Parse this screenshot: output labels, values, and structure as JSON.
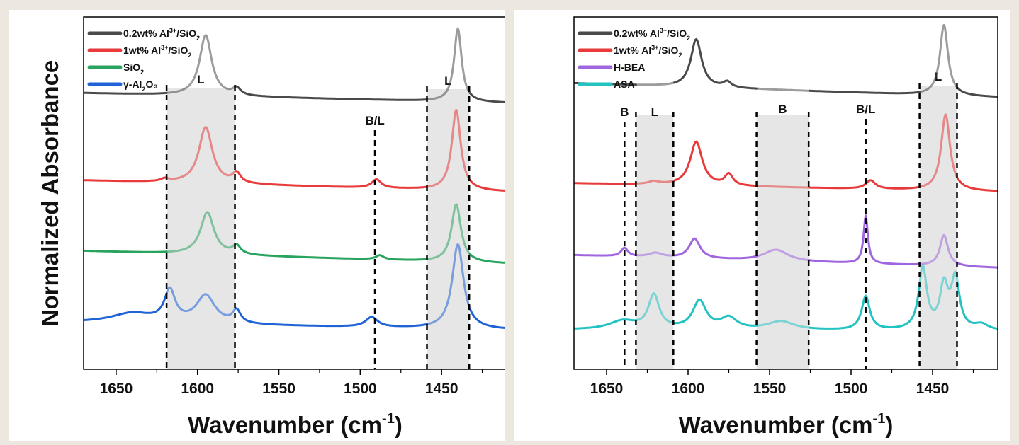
{
  "ylabel": "Normalized Absorbance",
  "chart_data": [
    {
      "type": "line",
      "xlabel": "Wavenumber (cm",
      "xlabel_sup": "-1",
      "xlim": [
        1670,
        1410
      ],
      "x_reversed": true,
      "xticks": [
        1650,
        1600,
        1550,
        1500,
        1450
      ],
      "tick_labels": [
        "1650",
        "1600",
        "1550",
        "1500",
        "1450"
      ],
      "legend": {
        "placement": "top-left",
        "entries": [
          {
            "text": "0.2wt% Al",
            "sup": "3+",
            "tail": "/SiO",
            "sub": "2",
            "tail2": ""
          },
          {
            "text": "1wt% Al",
            "sup": "3+",
            "tail": "/SiO",
            "sub": "2",
            "tail2": ""
          },
          {
            "text": "SiO",
            "sup": "",
            "tail": "",
            "sub": "2",
            "tail2": ""
          },
          {
            "text": "γ-Al",
            "sup": "",
            "tail": "",
            "sub": "2",
            "tail2": "O₃"
          }
        ]
      },
      "bands": [
        {
          "from": 1619,
          "to": 1577,
          "label": "L"
        },
        {
          "from": 1459,
          "to": 1433,
          "label": "L"
        }
      ],
      "dashed_lines": [
        {
          "x": 1619,
          "label": ""
        },
        {
          "x": 1577,
          "label": ""
        },
        {
          "x": 1491,
          "label": "B/L"
        },
        {
          "x": 1459,
          "label": ""
        },
        {
          "x": 1433,
          "label": ""
        }
      ],
      "series": [
        {
          "color": "#4a4a4a",
          "baseline": [
            0.27,
            0.305
          ],
          "peaks": [
            [
              1595,
              0.215,
              4.5
            ],
            [
              1576,
              0.025,
              3
            ],
            [
              1440,
              0.26,
              2.8
            ]
          ]
        },
        {
          "color": "#e83a3a",
          "baseline": [
            0.58,
            0.62
          ],
          "peaks": [
            [
              1595,
              0.2,
              5
            ],
            [
              1576,
              0.035,
              3
            ],
            [
              1620,
              0.01,
              3
            ],
            [
              1490,
              0.03,
              3.5
            ],
            [
              1441,
              0.285,
              3.3
            ]
          ]
        },
        {
          "color": "#2aa35f",
          "baseline": [
            0.83,
            0.875
          ],
          "peaks": [
            [
              1594,
              0.15,
              5
            ],
            [
              1576,
              0.03,
              3
            ],
            [
              1488,
              0.015,
              3
            ],
            [
              1441,
              0.205,
              3.5
            ]
          ]
        },
        {
          "color": "#1f63d6",
          "baseline": [
            1.085,
            1.11
          ],
          "peaks": [
            [
              1640,
              0.035,
              16
            ],
            [
              1617,
              0.11,
              4
            ],
            [
              1595,
              0.1,
              7
            ],
            [
              1576,
              0.045,
              3
            ],
            [
              1493,
              0.035,
              4.5
            ],
            [
              1440,
              0.3,
              4.2
            ]
          ]
        }
      ]
    },
    {
      "type": "line",
      "xlabel": "Wavenumber (cm",
      "xlabel_sup": "-1",
      "xlim": [
        1670,
        1410
      ],
      "x_reversed": true,
      "xticks": [
        1650,
        1600,
        1550,
        1500,
        1450
      ],
      "tick_labels": [
        "1650",
        "1600",
        "1550",
        "1500",
        "1450"
      ],
      "legend": {
        "placement": "top-left",
        "entries": [
          {
            "text": "0.2wt% Al",
            "sup": "3+",
            "tail": "/SiO",
            "sub": "2",
            "tail2": ""
          },
          {
            "text": "1wt% Al",
            "sup": "3+",
            "tail": "/SiO",
            "sub": "2",
            "tail2": ""
          },
          {
            "text": "H-BEA",
            "sup": "",
            "tail": "",
            "sub": "",
            "tail2": ""
          },
          {
            "text": "ASA",
            "sup": "",
            "tail": "",
            "sub": "",
            "tail2": ""
          }
        ]
      },
      "bands": [
        {
          "from": 1632,
          "to": 1609,
          "label": "L"
        },
        {
          "from": 1558,
          "to": 1526,
          "label": "B"
        },
        {
          "from": 1458,
          "to": 1435,
          "label": "L"
        }
      ],
      "dashed_lines": [
        {
          "x": 1639,
          "label": "B"
        },
        {
          "x": 1632,
          "label": ""
        },
        {
          "x": 1609,
          "label": ""
        },
        {
          "x": 1558,
          "label": ""
        },
        {
          "x": 1526,
          "label": ""
        },
        {
          "x": 1491,
          "label": "B/L"
        },
        {
          "x": 1458,
          "label": ""
        },
        {
          "x": 1435,
          "label": ""
        }
      ],
      "series": [
        {
          "color": "#4a4a4a",
          "baseline": [
            0.235,
            0.285
          ],
          "peaks": [
            [
              1595,
              0.17,
              4
            ],
            [
              1576,
              0.02,
              3
            ],
            [
              1443,
              0.25,
              3
            ]
          ]
        },
        {
          "color": "#e83a3a",
          "baseline": [
            0.59,
            0.62
          ],
          "peaks": [
            [
              1595,
              0.155,
              4.5
            ],
            [
              1575,
              0.04,
              3
            ],
            [
              1621,
              0.01,
              4
            ],
            [
              1488,
              0.03,
              3.5
            ],
            [
              1442,
              0.27,
              3.3
            ]
          ]
        },
        {
          "color": "#a066e0",
          "baseline": [
            0.845,
            0.89
          ],
          "peaks": [
            [
              1639,
              0.03,
              2.5
            ],
            [
              1620,
              0.015,
              5
            ],
            [
              1596,
              0.07,
              4
            ],
            [
              1546,
              0.04,
              9
            ],
            [
              1491,
              0.17,
              1.6
            ],
            [
              1443,
              0.11,
              3
            ]
          ]
        },
        {
          "color": "#25c2c2",
          "baseline": [
            1.11,
            1.115
          ],
          "peaks": [
            [
              1640,
              0.03,
              10
            ],
            [
              1621,
              0.12,
              4
            ],
            [
              1593,
              0.1,
              5
            ],
            [
              1575,
              0.04,
              6
            ],
            [
              1543,
              0.03,
              10
            ],
            [
              1491,
              0.12,
              3
            ],
            [
              1456,
              0.22,
              3
            ],
            [
              1443,
              0.15,
              3
            ],
            [
              1436,
              0.18,
              3
            ],
            [
              1420,
              0.02,
              5
            ]
          ]
        }
      ]
    }
  ]
}
